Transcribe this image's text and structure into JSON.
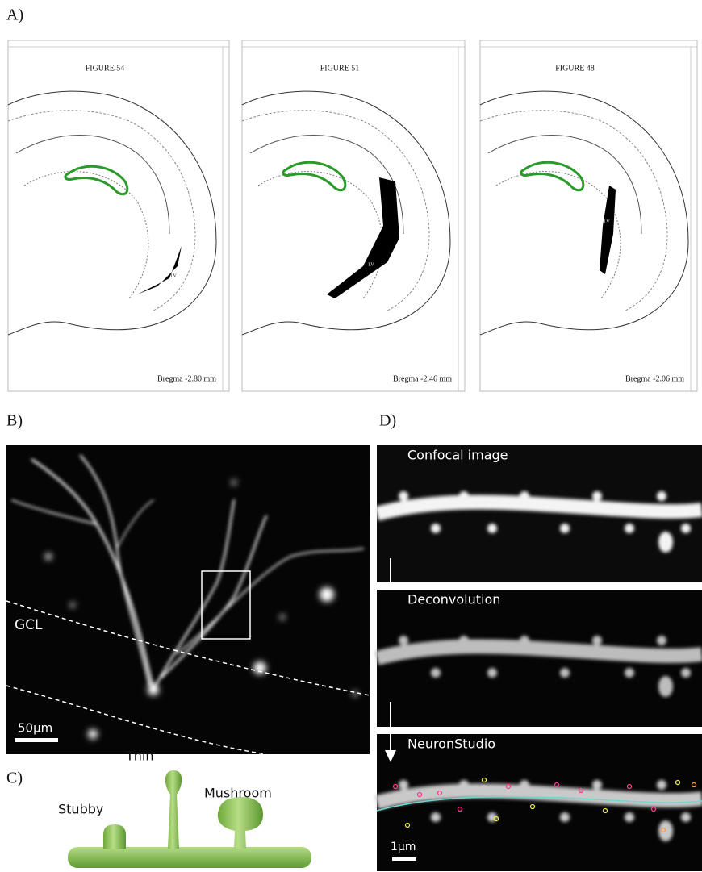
{
  "panels": {
    "a": {
      "label": "A)",
      "atlases": [
        {
          "title": "FIGURE 54",
          "bregma": "Bregma -2.80 mm",
          "ventricle": "LV"
        },
        {
          "title": "FIGURE 51",
          "bregma": "Bregma -2.46 mm",
          "ventricle": "LV"
        },
        {
          "title": "FIGURE 48",
          "bregma": "Bregma -2.06 mm",
          "ventricle": "LV"
        }
      ]
    },
    "b": {
      "label": "B)",
      "region": "GCL",
      "scale": "50µm"
    },
    "c": {
      "label": "C)",
      "spines": [
        "Stubby",
        "Thin",
        "Mushroom"
      ]
    },
    "d": {
      "label": "D)",
      "steps": [
        "Confocal image",
        "Deconvolution",
        "NeuronStudio"
      ],
      "scale": "1µm"
    }
  }
}
